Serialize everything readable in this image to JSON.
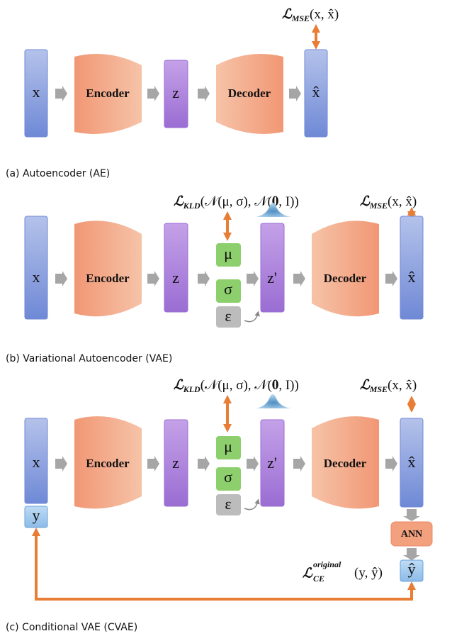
{
  "panels": [
    {
      "caption": "(a) Autoencoder (AE)",
      "input": "x",
      "encoder": "Encoder",
      "latent": "z",
      "decoder": "Decoder",
      "output": "x̂",
      "mse": {
        "symbol": "ℒ",
        "subscript": "MSE",
        "args": "(x, x̂)"
      }
    },
    {
      "caption": "(b) Variational Autoencoder (VAE)",
      "input": "x",
      "encoder": "Encoder",
      "latent": "z",
      "mu": "μ",
      "sigma": "σ",
      "epsilon": "ε",
      "sampled": "z'",
      "decoder": "Decoder",
      "output": "x̂",
      "kld": {
        "symbol": "ℒ",
        "subscript": "KLD",
        "args": "(𝒩(μ, σ), 𝒩(𝟎, I))"
      },
      "mse": {
        "symbol": "ℒ",
        "subscript": "MSE",
        "args": "(x, x̂)"
      }
    },
    {
      "caption": "(c) Conditional VAE (CVAE)",
      "input": "x",
      "condition": "y",
      "encoder": "Encoder",
      "latent": "z",
      "mu": "μ",
      "sigma": "σ",
      "epsilon": "ε",
      "sampled": "z'",
      "decoder": "Decoder",
      "output": "x̂",
      "classifier": "ANN",
      "prediction": "ŷ",
      "kld": {
        "symbol": "ℒ",
        "subscript": "KLD",
        "args": "(𝒩(μ, σ), 𝒩(𝟎, I))"
      },
      "mse": {
        "symbol": "ℒ",
        "subscript": "MSE",
        "args": "(x, x̂)"
      },
      "ce": {
        "symbol": "ℒ",
        "superscript": "original",
        "subscript": "CE",
        "args": "(y, ŷ)"
      }
    }
  ]
}
